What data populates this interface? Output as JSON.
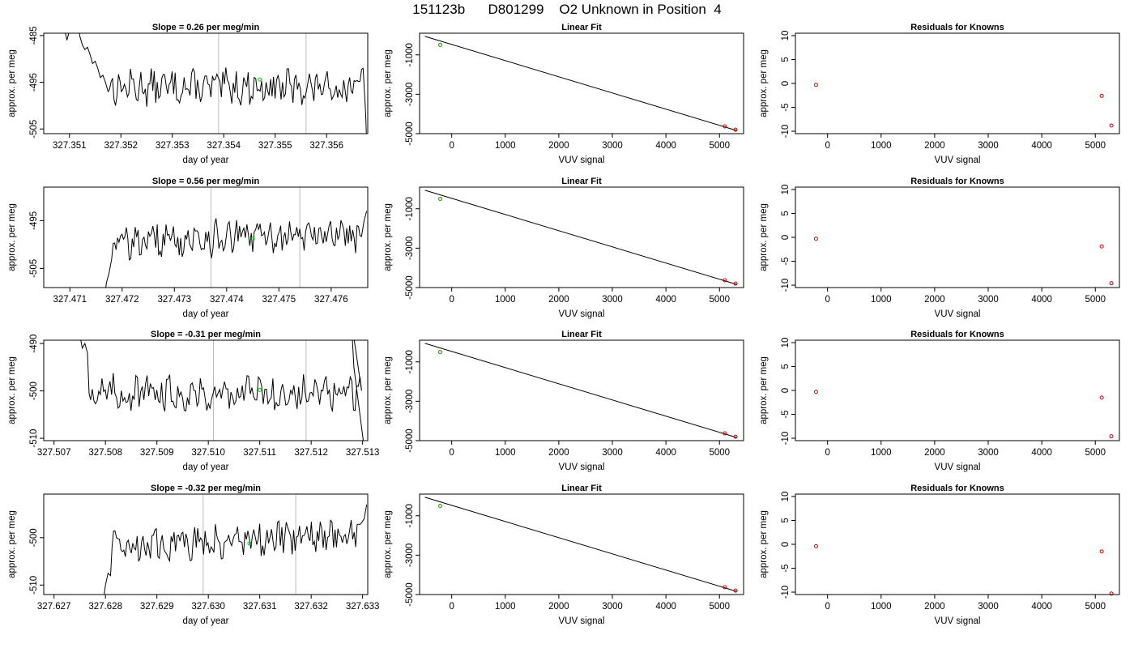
{
  "title": "151123b      D801299    O2 Unknown in Position  4",
  "colors": {
    "trace": "#000000",
    "fit_line": "#000000",
    "known": "#cc0000",
    "unknown": "#00cc00",
    "vline": "#bbbbbb"
  },
  "chart_data": [
    {
      "row": 1,
      "time_series": {
        "type": "line",
        "title": "Slope =  0.26  per meg/min",
        "xlabel": "day of year",
        "ylabel": "approx. per meg",
        "xlim": [
          327.3505,
          327.3568
        ],
        "ylim": [
          -506,
          -484.5
        ],
        "xticks": [
          327.351,
          327.352,
          327.353,
          327.354,
          327.355,
          327.356
        ],
        "xticklabels": [
          "327.351",
          "327.352",
          "327.353",
          "327.354",
          "327.355",
          "327.356"
        ],
        "yticks": [
          -485,
          -495,
          -505
        ],
        "yticklabels": [
          "-485",
          "-495",
          "-505"
        ],
        "vlines": [
          327.3539,
          327.3556
        ],
        "unknown_point": {
          "x": 327.3547,
          "y": -494.4
        },
        "series_points": [
          [
            327.3508,
            -478
          ],
          [
            327.35095,
            -486
          ],
          [
            327.351,
            -484
          ],
          [
            327.35115,
            -480
          ],
          [
            327.3512,
            -485
          ],
          [
            327.35125,
            -487
          ],
          [
            327.3513,
            -488
          ],
          [
            327.35135,
            -487.5
          ],
          [
            327.3514,
            -489
          ],
          [
            327.35145,
            -491
          ],
          [
            327.3515,
            -490.5
          ],
          [
            327.35155,
            -492
          ],
          [
            327.3516,
            -494
          ],
          [
            327.35165,
            -493.5
          ],
          [
            327.3517,
            -495
          ],
          [
            327.35175,
            -497
          ]
        ]
      },
      "linear_fit": {
        "type": "scatter",
        "title": "Linear Fit",
        "xlabel": "VUV signal",
        "ylabel": "approx. per meg",
        "xlim": [
          -600,
          5450
        ],
        "ylim": [
          -5000,
          100
        ],
        "xticks": [
          0,
          1000,
          2000,
          3000,
          4000,
          5000
        ],
        "xticklabels": [
          "0",
          "1000",
          "2000",
          "3000",
          "4000",
          "5000"
        ],
        "yticks": [
          -1000,
          -3000,
          -5000
        ],
        "yticklabels": [
          "-1000",
          "-3000",
          "-5000"
        ],
        "line": {
          "x": [
            -500,
            5320
          ],
          "y": [
            -60,
            -4840
          ]
        },
        "knowns": [
          {
            "x": -215,
            "y": -490
          },
          {
            "x": 5100,
            "y": -4630
          },
          {
            "x": 5300,
            "y": -4800
          }
        ],
        "unknown": {
          "x": -215,
          "y": -495
        }
      },
      "residuals": {
        "type": "scatter",
        "title": "Residuals for Knowns",
        "xlabel": "VUV signal",
        "ylabel": "approx. per meg",
        "xlim": [
          -600,
          5450
        ],
        "ylim": [
          -10.5,
          10.5
        ],
        "xticks": [
          0,
          1000,
          2000,
          3000,
          4000,
          5000
        ],
        "xticklabels": [
          "0",
          "1000",
          "2000",
          "3000",
          "4000",
          "5000"
        ],
        "yticks": [
          10,
          5,
          0,
          -5,
          -10
        ],
        "yticklabels": [
          "10",
          "5",
          "0",
          "-5",
          "-10"
        ],
        "points": [
          {
            "x": -215,
            "y": -0.3
          },
          {
            "x": 5120,
            "y": -2.6
          },
          {
            "x": 5300,
            "y": -8.8
          }
        ]
      }
    },
    {
      "row": 2,
      "time_series": {
        "type": "line",
        "title": "Slope =  0.56  per meg/min",
        "xlabel": "day of year",
        "ylabel": "approx. per meg",
        "xlim": [
          327.4705,
          327.4767
        ],
        "ylim": [
          -509,
          -488
        ],
        "xticks": [
          327.471,
          327.472,
          327.473,
          327.474,
          327.475,
          327.476
        ],
        "xticklabels": [
          "327.471",
          "327.472",
          "327.473",
          "327.474",
          "327.475",
          "327.476"
        ],
        "yticks": [
          -495,
          -505
        ],
        "yticklabels": [
          "-495",
          "-505"
        ],
        "vlines": [
          327.4737,
          327.4754
        ],
        "unknown_point": {
          "x": 327.4745,
          "y": -498.8
        },
        "series_points": [
          [
            327.47165,
            -512
          ],
          [
            327.4717,
            -508
          ],
          [
            327.47175,
            -506
          ],
          [
            327.4718,
            -503
          ]
        ]
      },
      "linear_fit": {
        "type": "scatter",
        "title": "Linear Fit",
        "xlabel": "VUV signal",
        "ylabel": "approx. per meg",
        "xlim": [
          -600,
          5450
        ],
        "ylim": [
          -5000,
          100
        ],
        "xticks": [
          0,
          1000,
          2000,
          3000,
          4000,
          5000
        ],
        "xticklabels": [
          "0",
          "1000",
          "2000",
          "3000",
          "4000",
          "5000"
        ],
        "yticks": [
          -1000,
          -3000,
          -5000
        ],
        "yticklabels": [
          "-1000",
          "-3000",
          "-5000"
        ],
        "line": {
          "x": [
            -500,
            5320
          ],
          "y": [
            -60,
            -4840
          ]
        },
        "knowns": [
          {
            "x": -215,
            "y": -495
          },
          {
            "x": 5100,
            "y": -4630
          },
          {
            "x": 5300,
            "y": -4800
          }
        ],
        "unknown": {
          "x": -215,
          "y": -499
        }
      },
      "residuals": {
        "type": "scatter",
        "title": "Residuals for Knowns",
        "xlabel": "VUV signal",
        "ylabel": "approx. per meg",
        "xlim": [
          -600,
          5450
        ],
        "ylim": [
          -10.5,
          10.5
        ],
        "xticks": [
          0,
          1000,
          2000,
          3000,
          4000,
          5000
        ],
        "xticklabels": [
          "0",
          "1000",
          "2000",
          "3000",
          "4000",
          "5000"
        ],
        "yticks": [
          10,
          5,
          0,
          -5,
          -10
        ],
        "yticklabels": [
          "10",
          "5",
          "0",
          "-5",
          "-10"
        ],
        "points": [
          {
            "x": -215,
            "y": -0.3
          },
          {
            "x": 5120,
            "y": -1.9
          },
          {
            "x": 5300,
            "y": -9.6
          }
        ]
      }
    },
    {
      "row": 3,
      "time_series": {
        "type": "line",
        "title": "Slope =  -0.31  per meg/min",
        "xlabel": "day of year",
        "ylabel": "approx. per meg",
        "xlim": [
          327.5068,
          327.5131
        ],
        "ylim": [
          -510.5,
          -489.3
        ],
        "xticks": [
          327.507,
          327.508,
          327.509,
          327.51,
          327.511,
          327.512,
          327.513
        ],
        "xticklabels": [
          "327.507",
          "327.508",
          "327.509",
          "327.510",
          "327.511",
          "327.512",
          "327.513"
        ],
        "yticks": [
          -490,
          -500,
          -510
        ],
        "yticklabels": [
          "-490",
          "-500",
          "-510"
        ],
        "vlines": [
          327.5101,
          327.5119
        ],
        "unknown_point": {
          "x": 327.511,
          "y": -499.8
        },
        "series_points": [
          [
            327.5075,
            -488
          ],
          [
            327.50755,
            -491
          ],
          [
            327.5076,
            -490
          ],
          [
            327.50765,
            -492
          ]
        ]
      },
      "linear_fit": {
        "type": "scatter",
        "title": "Linear Fit",
        "xlabel": "VUV signal",
        "ylabel": "approx. per meg",
        "xlim": [
          -600,
          5450
        ],
        "ylim": [
          -5000,
          100
        ],
        "xticks": [
          0,
          1000,
          2000,
          3000,
          4000,
          5000
        ],
        "xticklabels": [
          "0",
          "1000",
          "2000",
          "3000",
          "4000",
          "5000"
        ],
        "yticks": [
          -1000,
          -3000,
          -5000
        ],
        "yticklabels": [
          "-1000",
          "-3000",
          "-5000"
        ],
        "line": {
          "x": [
            -500,
            5320
          ],
          "y": [
            -60,
            -4840
          ]
        },
        "knowns": [
          {
            "x": -215,
            "y": -500
          },
          {
            "x": 5100,
            "y": -4630
          },
          {
            "x": 5300,
            "y": -4800
          }
        ],
        "unknown": {
          "x": -215,
          "y": -500
        }
      },
      "residuals": {
        "type": "scatter",
        "title": "Residuals for Knowns",
        "xlabel": "VUV signal",
        "ylabel": "approx. per meg",
        "xlim": [
          -600,
          5450
        ],
        "ylim": [
          -10.5,
          10.5
        ],
        "xticks": [
          0,
          1000,
          2000,
          3000,
          4000,
          5000
        ],
        "xticklabels": [
          "0",
          "1000",
          "2000",
          "3000",
          "4000",
          "5000"
        ],
        "yticks": [
          10,
          5,
          0,
          -5,
          -10
        ],
        "yticklabels": [
          "10",
          "5",
          "0",
          "-5",
          "-10"
        ],
        "points": [
          {
            "x": -215,
            "y": -0.3
          },
          {
            "x": 5120,
            "y": -1.5
          },
          {
            "x": 5300,
            "y": -9.6
          }
        ]
      }
    },
    {
      "row": 4,
      "time_series": {
        "type": "line",
        "title": "Slope =  -0.32  per meg/min",
        "xlabel": "day of year",
        "ylabel": "approx. per meg",
        "xlim": [
          327.6268,
          327.6331
        ],
        "ylim": [
          -512,
          -490.8
        ],
        "xticks": [
          327.627,
          327.628,
          327.629,
          327.63,
          327.631,
          327.632,
          327.633
        ],
        "xticklabels": [
          "327.627",
          "327.628",
          "327.629",
          "327.630",
          "327.631",
          "327.632",
          "327.633"
        ],
        "yticks": [
          -500,
          -510
        ],
        "yticklabels": [
          "-500",
          "-510"
        ],
        "vlines": [
          327.6299,
          327.6317
        ],
        "unknown_point": {
          "x": 327.6308,
          "y": -501.2
        },
        "series_points": [
          [
            327.62795,
            -514
          ],
          [
            327.628,
            -510
          ],
          [
            327.62805,
            -507.5
          ],
          [
            327.6281,
            -508
          ]
        ]
      },
      "linear_fit": {
        "type": "scatter",
        "title": "Linear Fit",
        "xlabel": "VUV signal",
        "ylabel": "approx. per meg",
        "xlim": [
          -600,
          5450
        ],
        "ylim": [
          -5000,
          100
        ],
        "xticks": [
          0,
          1000,
          2000,
          3000,
          4000,
          5000
        ],
        "xticklabels": [
          "0",
          "1000",
          "2000",
          "3000",
          "4000",
          "5000"
        ],
        "yticks": [
          -1000,
          -3000,
          -5000
        ],
        "yticklabels": [
          "-1000",
          "-3000",
          "-5000"
        ],
        "line": {
          "x": [
            -500,
            5320
          ],
          "y": [
            -60,
            -4840
          ]
        },
        "knowns": [
          {
            "x": -215,
            "y": -500
          },
          {
            "x": 5100,
            "y": -4630
          },
          {
            "x": 5300,
            "y": -4800
          }
        ],
        "unknown": {
          "x": -215,
          "y": -501
        }
      },
      "residuals": {
        "type": "scatter",
        "title": "Residuals for Knowns",
        "xlabel": "VUV signal",
        "ylabel": "approx. per meg",
        "xlim": [
          -600,
          5450
        ],
        "ylim": [
          -10.5,
          10.5
        ],
        "xticks": [
          0,
          1000,
          2000,
          3000,
          4000,
          5000
        ],
        "xticklabels": [
          "0",
          "1000",
          "2000",
          "3000",
          "4000",
          "5000"
        ],
        "yticks": [
          10,
          5,
          0,
          -5,
          -10
        ],
        "yticklabels": [
          "10",
          "5",
          "0",
          "-5",
          "-10"
        ],
        "points": [
          {
            "x": -215,
            "y": -0.4
          },
          {
            "x": 5120,
            "y": -1.5
          },
          {
            "x": 5300,
            "y": -10.3
          }
        ]
      }
    }
  ]
}
